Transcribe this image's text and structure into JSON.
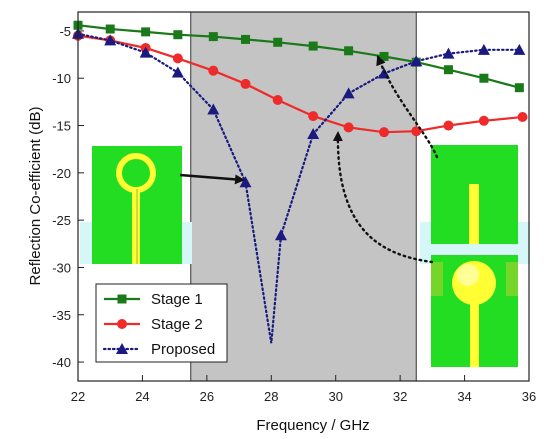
{
  "chart_data": {
    "type": "line",
    "xlabel": "Frequency / GHz",
    "ylabel": "Reflection Co-efficient (dB)",
    "xlim": [
      22,
      36
    ],
    "ylim": [
      -42,
      -3
    ],
    "xticks": [
      "22",
      "24",
      "26",
      "28",
      "30",
      "32",
      "34",
      "36"
    ],
    "yticks": [
      "-5",
      "-10",
      "-15",
      "-20",
      "-25",
      "-30",
      "-35",
      "-40"
    ],
    "shaded_band": [
      25.5,
      32.5
    ],
    "legend_position": "bottom-left",
    "grid": false,
    "series": [
      {
        "name": "Stage 1",
        "color": "#1a7a1a",
        "marker": "square",
        "line": "solid",
        "x": [
          22,
          23,
          24.1,
          25.1,
          26.2,
          27.2,
          28.2,
          29.3,
          30.4,
          31.5,
          32.5,
          33.5,
          34.6,
          35.7
        ],
        "y": [
          -4.4,
          -4.8,
          -5.1,
          -5.4,
          -5.6,
          -5.9,
          -6.2,
          -6.6,
          -7.1,
          -7.7,
          -8.3,
          -9.1,
          -10.0,
          -11.0
        ]
      },
      {
        "name": "Stage 2",
        "color": "#ee2a2a",
        "marker": "circle",
        "line": "solid",
        "x": [
          22,
          23,
          24.1,
          25.1,
          26.2,
          27.2,
          28.2,
          29.3,
          30.4,
          31.5,
          32.5,
          33.5,
          34.6,
          35.8
        ],
        "y": [
          -5.5,
          -6.0,
          -6.8,
          -7.9,
          -9.2,
          -10.6,
          -12.3,
          -14.0,
          -15.2,
          -15.7,
          -15.6,
          -15.0,
          -14.5,
          -14.1
        ]
      },
      {
        "name": "Proposed",
        "color": "#1a1a80",
        "marker": "triangle",
        "line": "dotted",
        "x": [
          22,
          23,
          24.1,
          25.1,
          26.2,
          27.2,
          28.0,
          28.3,
          29.3,
          30.4,
          31.5,
          32.5,
          33.5,
          34.6,
          35.7
        ],
        "y": [
          -5.3,
          -6.0,
          -7.3,
          -9.4,
          -13.3,
          -21.0,
          -38.0,
          -26.6,
          -15.9,
          -11.6,
          -9.5,
          -8.2,
          -7.4,
          -7.0,
          -7.0
        ]
      }
    ]
  },
  "decor": {
    "arrow_color": "#111111",
    "band_color": "#c4c4c4",
    "patch_green": "#22dd22",
    "patch_yellow": "#ffff33",
    "patch_cyan": "#d6f7f7"
  }
}
